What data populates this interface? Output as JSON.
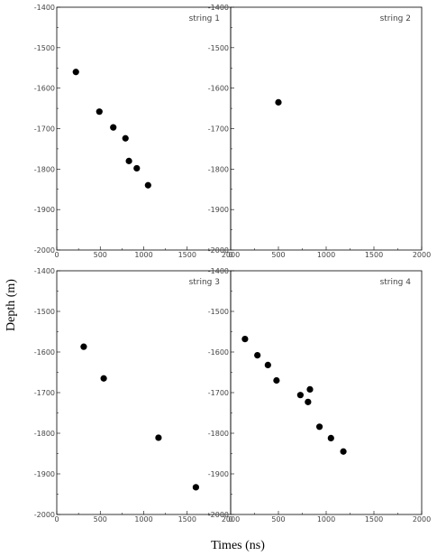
{
  "figure": {
    "xlabel": "Times (ns)",
    "ylabel": "Depth (m)"
  },
  "chart_data": [
    {
      "type": "scatter",
      "title": "string 1",
      "xlim": [
        0,
        2000
      ],
      "ylim": [
        -2000,
        -1400
      ],
      "xticks": [
        0,
        500,
        1000,
        1500,
        2000
      ],
      "yticks": [
        -1400,
        -1500,
        -1600,
        -1700,
        -1800,
        -1900,
        -2000
      ],
      "points": [
        [
          220,
          -1560
        ],
        [
          490,
          -1658
        ],
        [
          650,
          -1697
        ],
        [
          790,
          -1724
        ],
        [
          830,
          -1780
        ],
        [
          920,
          -1798
        ],
        [
          1050,
          -1840
        ]
      ]
    },
    {
      "type": "scatter",
      "title": "string 2",
      "xlim": [
        0,
        2000
      ],
      "ylim": [
        -2000,
        -1400
      ],
      "xticks": [
        0,
        500,
        1000,
        1500,
        2000
      ],
      "yticks": [
        -1400,
        -1500,
        -1600,
        -1700,
        -1800,
        -1900,
        -2000
      ],
      "points": [
        [
          500,
          -1635
        ]
      ]
    },
    {
      "type": "scatter",
      "title": "string 3",
      "xlim": [
        0,
        2000
      ],
      "ylim": [
        -2000,
        -1400
      ],
      "xticks": [
        0,
        500,
        1000,
        1500,
        2000
      ],
      "yticks": [
        -1400,
        -1500,
        -1600,
        -1700,
        -1800,
        -1900,
        -2000
      ],
      "points": [
        [
          310,
          -1587
        ],
        [
          540,
          -1665
        ],
        [
          1170,
          -1811
        ],
        [
          1600,
          -1933
        ]
      ]
    },
    {
      "type": "scatter",
      "title": "string 4",
      "xlim": [
        0,
        2000
      ],
      "ylim": [
        -2000,
        -1400
      ],
      "xticks": [
        0,
        500,
        1000,
        1500,
        2000
      ],
      "yticks": [
        -1400,
        -1500,
        -1600,
        -1700,
        -1800,
        -1900,
        -2000
      ],
      "points": [
        [
          150,
          -1568
        ],
        [
          280,
          -1608
        ],
        [
          390,
          -1632
        ],
        [
          480,
          -1670
        ],
        [
          730,
          -1706
        ],
        [
          810,
          -1723
        ],
        [
          830,
          -1692
        ],
        [
          930,
          -1784
        ],
        [
          1050,
          -1812
        ],
        [
          1180,
          -1845
        ]
      ]
    }
  ]
}
